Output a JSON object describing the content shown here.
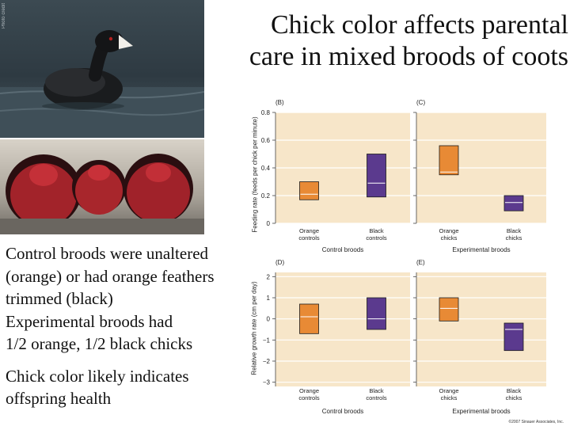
{
  "slide": {
    "title_lines": [
      "Chick color affects parental",
      "care in mixed broods of coots"
    ],
    "bullets": [
      "Control broods were unaltered",
      "(orange) or had orange feathers",
      "trimmed (black)",
      "Experimental broods had",
      "1/2 orange, 1/2 black chicks",
      "",
      "Chick color likely indicates",
      "offspring health"
    ],
    "photo_credit": "Photo credit"
  },
  "colors": {
    "panel_bg": "#f7e6c9",
    "grid": "#ffffff",
    "orange": "#e88a35",
    "purple": "#5b3a8e",
    "median": "#ffffff"
  },
  "figure": {
    "top_ylabel": "Feeding rate (feeds per chick per minute)",
    "bottom_ylabel": "Relative growth rate (cm per day)",
    "copyright": "©2007 Sinauer Associates, Inc."
  },
  "chart_data": [
    {
      "panel": "(B)",
      "type": "box",
      "ylabel": "Feeding rate (feeds per chick per minute)",
      "ylim": [
        0,
        0.8
      ],
      "yticks": [
        "0",
        "0.2",
        "0.4",
        "0.6",
        "0.8"
      ],
      "ytick_values": [
        0,
        0.2,
        0.4,
        0.6,
        0.8
      ],
      "categories": [
        "Orange controls",
        "Black controls"
      ],
      "category_lines": [
        [
          "Orange",
          "controls"
        ],
        [
          "Black",
          "controls"
        ]
      ],
      "group_label": "Control broods",
      "series": [
        {
          "name": "Orange controls",
          "low": 0.17,
          "high": 0.3,
          "median": 0.21,
          "color": "orange"
        },
        {
          "name": "Black controls",
          "low": 0.19,
          "high": 0.5,
          "median": 0.29,
          "color": "purple"
        }
      ]
    },
    {
      "panel": "(C)",
      "type": "box",
      "ylim": [
        0,
        0.8
      ],
      "ytick_values": [
        0,
        0.2,
        0.4,
        0.6,
        0.8
      ],
      "categories": [
        "Orange chicks",
        "Black chicks"
      ],
      "category_lines": [
        [
          "Orange",
          "chicks"
        ],
        [
          "Black",
          "chicks"
        ]
      ],
      "group_label": "Experimental broods",
      "series": [
        {
          "name": "Orange chicks",
          "low": 0.35,
          "high": 0.56,
          "median": 0.37,
          "color": "orange"
        },
        {
          "name": "Black chicks",
          "low": 0.09,
          "high": 0.2,
          "median": 0.15,
          "color": "purple"
        }
      ]
    },
    {
      "panel": "(D)",
      "type": "box",
      "ylabel": "Relative growth rate (cm per day)",
      "ylim": [
        -3.2,
        2.2
      ],
      "yticks": [
        "2",
        "1",
        "0",
        "−1",
        "−2",
        "−3"
      ],
      "ytick_values": [
        2,
        1,
        0,
        -1,
        -2,
        -3
      ],
      "categories": [
        "Orange controls",
        "Black controls"
      ],
      "category_lines": [
        [
          "Orange",
          "controls"
        ],
        [
          "Black",
          "controls"
        ]
      ],
      "group_label": "Control broods",
      "series": [
        {
          "name": "Orange controls",
          "low": -0.7,
          "high": 0.7,
          "median": 0.1,
          "color": "orange"
        },
        {
          "name": "Black controls",
          "low": -0.5,
          "high": 1.0,
          "median": 0.0,
          "color": "purple"
        }
      ]
    },
    {
      "panel": "(E)",
      "type": "box",
      "ylim": [
        -3.2,
        2.2
      ],
      "ytick_values": [
        2,
        1,
        0,
        -1,
        -2,
        -3
      ],
      "categories": [
        "Orange chicks",
        "Black chicks"
      ],
      "category_lines": [
        [
          "Orange",
          "chicks"
        ],
        [
          "Black",
          "chicks"
        ]
      ],
      "group_label": "Experimental broods",
      "series": [
        {
          "name": "Orange chicks",
          "low": -0.1,
          "high": 1.0,
          "median": 0.5,
          "color": "orange"
        },
        {
          "name": "Black chicks",
          "low": -1.5,
          "high": -0.2,
          "median": -0.5,
          "color": "purple"
        }
      ]
    }
  ]
}
